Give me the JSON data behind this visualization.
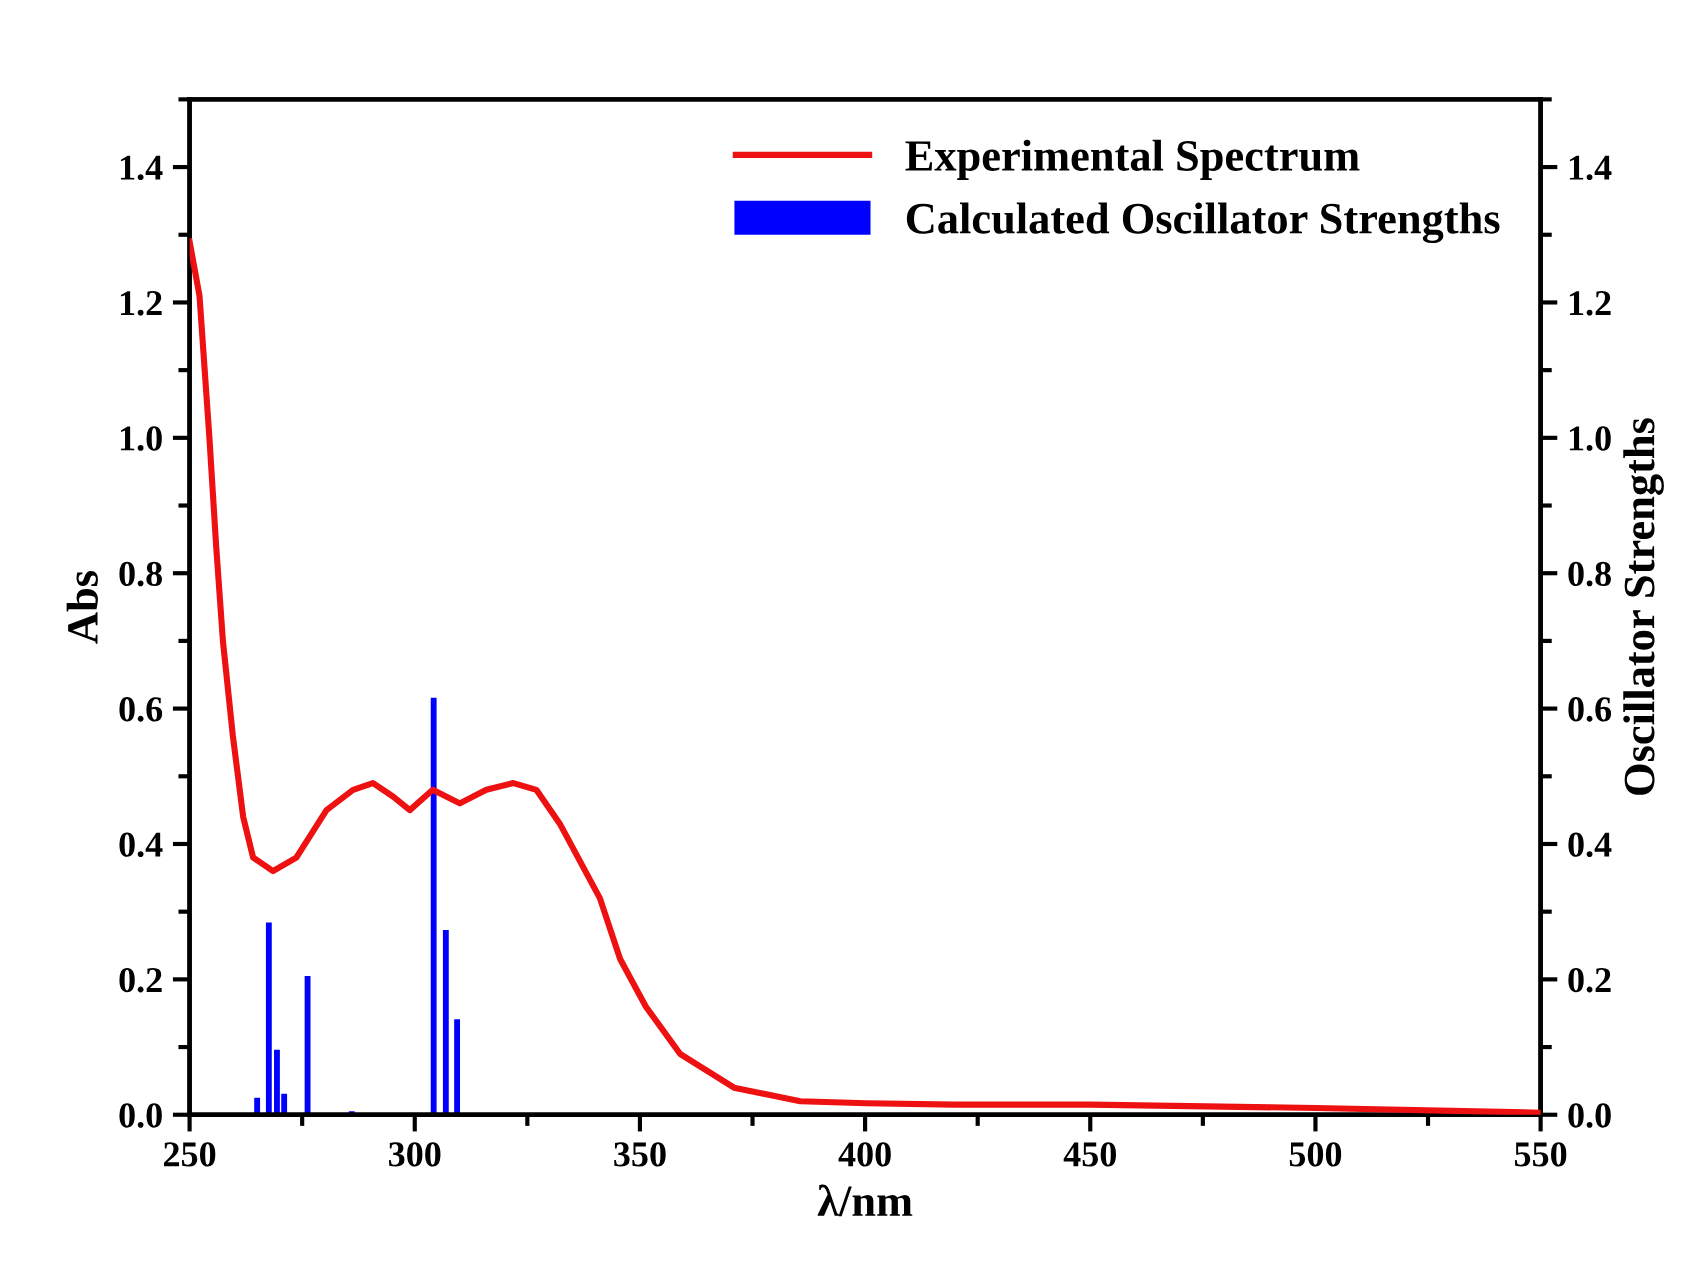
{
  "chart_data": {
    "type": "line",
    "xlabel": "λ/nm",
    "ylabel": "Abs",
    "y2label": "Oscillator Strengths",
    "xlim": [
      250,
      550
    ],
    "xticks": [
      250,
      300,
      350,
      400,
      450,
      500,
      550
    ],
    "ylim": [
      0,
      1.5
    ],
    "yticks": [
      {
        "value": 0,
        "label": "0.0"
      },
      0.2,
      0.4,
      0.6,
      0.8,
      {
        "value": 1,
        "label": "1.0"
      },
      1.2,
      1.4
    ],
    "y2lim": [
      0,
      1.5
    ],
    "y2ticks": [
      {
        "value": 0,
        "label": "0.0"
      },
      0.2,
      0.4,
      0.6,
      0.8,
      {
        "value": 1,
        "label": "1.0"
      },
      1.2,
      1.4
    ],
    "grid": false,
    "legend": "top right",
    "series": [
      {
        "name": "Experimental Spectrum",
        "color": "#ee1111",
        "x": [
          250,
          252.2,
          254.4,
          255.9,
          257.4,
          259.6,
          261.9,
          264.1,
          268.5,
          273.7,
          280.4,
          286.3,
          290.7,
          295.2,
          298.9,
          304,
          310,
          315.9,
          321.9,
          327,
          332.2,
          341.1,
          345.6,
          351.3,
          358.9,
          370.9,
          385.6,
          400.3,
          420,
          450,
          500,
          550
        ],
        "values": [
          1.29,
          1.21,
          1.0,
          0.84,
          0.7,
          0.56,
          0.44,
          0.38,
          0.36,
          0.38,
          0.45,
          0.48,
          0.49,
          0.47,
          0.45,
          0.48,
          0.46,
          0.48,
          0.49,
          0.48,
          0.43,
          0.32,
          0.23,
          0.16,
          0.09,
          0.04,
          0.02,
          0.017,
          0.015,
          0.015,
          0.01,
          0.003
        ]
      },
      {
        "name": "Calculated Oscillator Strengths",
        "type": "bar",
        "axis": "y2",
        "color": "#0000ff",
        "x": [
          265,
          267.6,
          269.4,
          271,
          276.2,
          286,
          304.2,
          306.9,
          309.4
        ],
        "values": [
          0.025,
          0.284,
          0.096,
          0.031,
          0.205,
          0.005,
          0.616,
          0.273,
          0.141
        ]
      }
    ]
  }
}
